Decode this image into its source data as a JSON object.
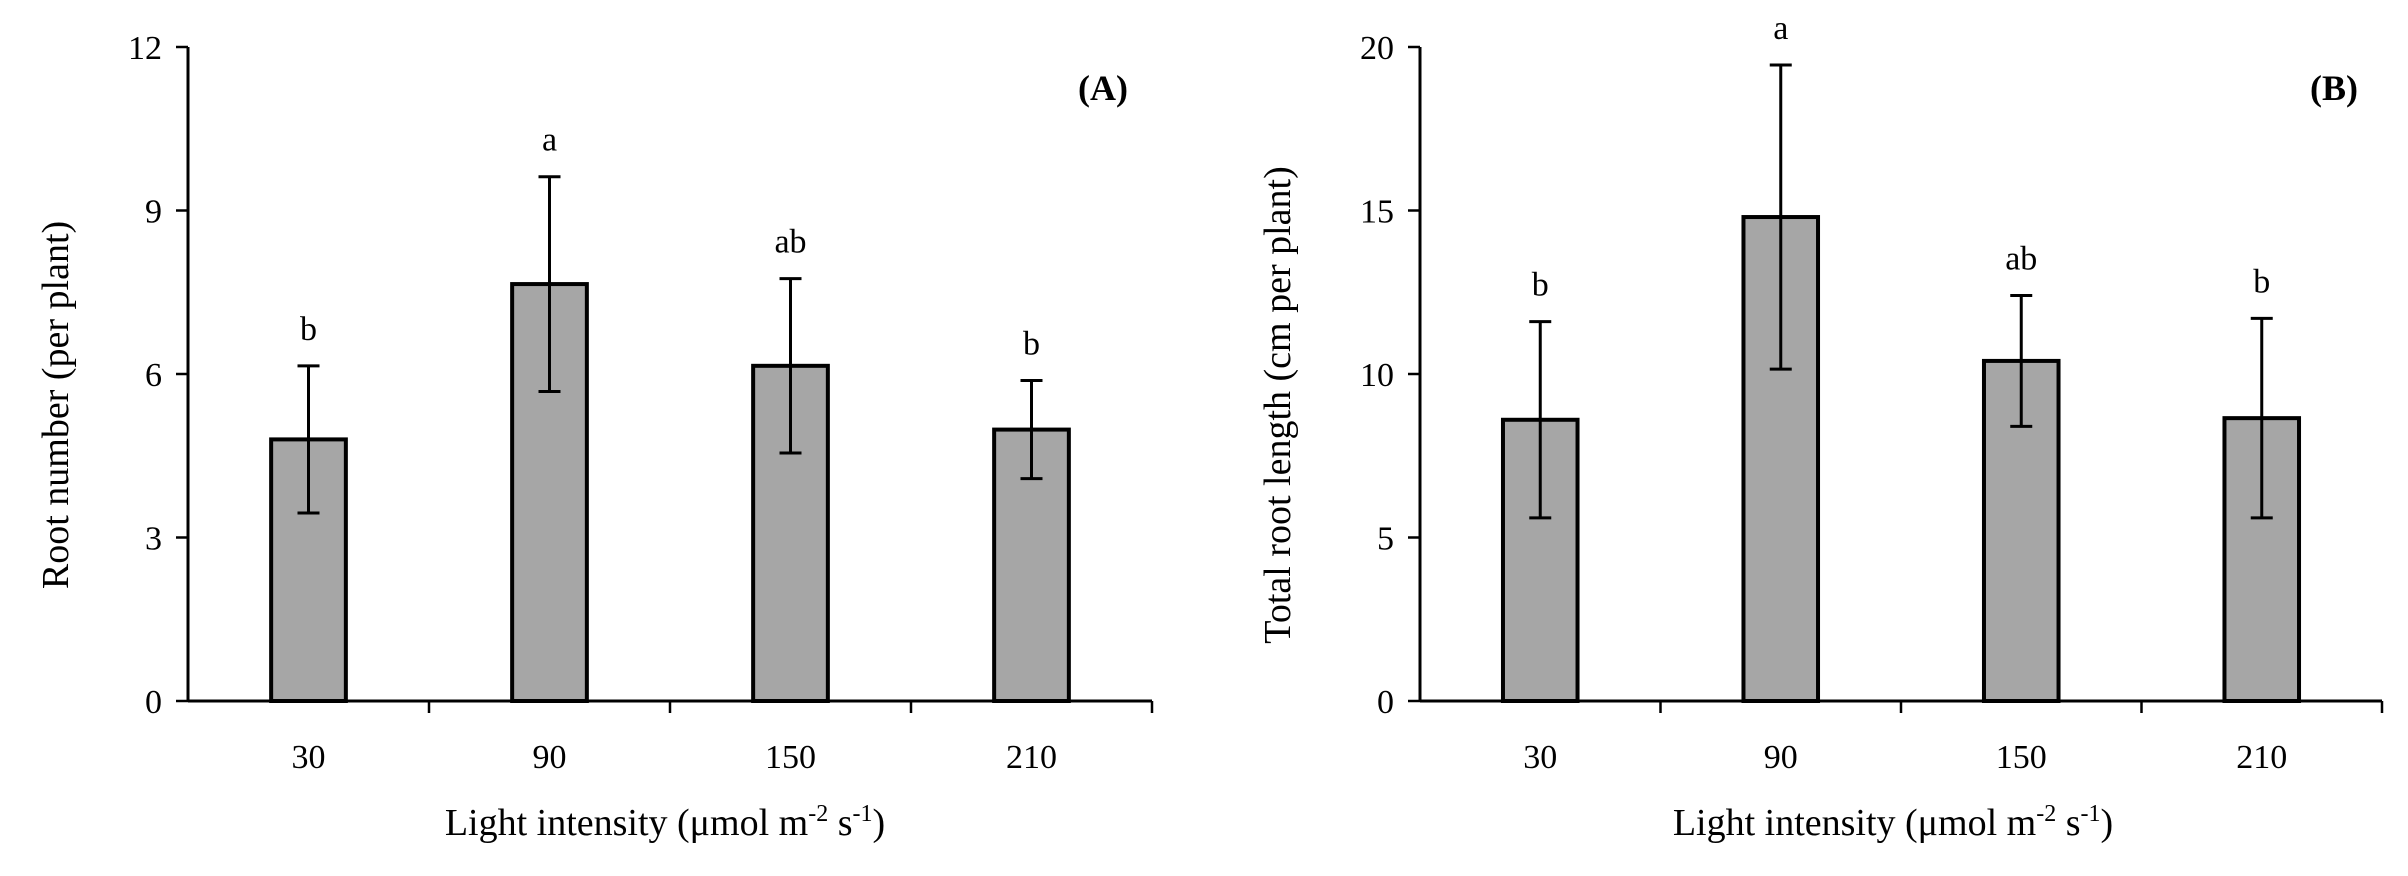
{
  "chart_data": [
    {
      "type": "bar",
      "panel_label": "(A)",
      "categories": [
        "30",
        "90",
        "150",
        "210"
      ],
      "values": [
        4.8,
        7.65,
        6.15,
        4.98
      ],
      "errors": [
        1.35,
        1.97,
        1.6,
        0.9
      ],
      "significance": [
        "b",
        "a",
        "ab",
        "b"
      ],
      "ylabel": "Root number (per plant)",
      "xlabel": "Light intensity (μmol m",
      "xlabel_exp1": "-2",
      "xlabel_mid": " s",
      "xlabel_exp2": "-1",
      "xlabel_end": ")",
      "ylim": [
        0,
        12
      ],
      "yticks": [
        "0",
        "3",
        "6",
        "9",
        "12"
      ],
      "yticks_values": [
        0,
        3,
        6,
        9,
        12
      ],
      "bar_color": "#a6a6a6",
      "grid": false
    },
    {
      "type": "bar",
      "panel_label": "(B)",
      "categories": [
        "30",
        "90",
        "150",
        "210"
      ],
      "values": [
        8.6,
        14.8,
        10.4,
        8.65
      ],
      "errors": [
        3.0,
        4.65,
        2.0,
        3.05
      ],
      "significance": [
        "b",
        "a",
        "ab",
        "b"
      ],
      "ylabel": "Total root length (cm per plant)",
      "xlabel": "Light intensity (μmol m",
      "xlabel_exp1": "-2",
      "xlabel_mid": " s",
      "xlabel_exp2": "-1",
      "xlabel_end": ")",
      "ylim": [
        0,
        20
      ],
      "yticks": [
        "0",
        "5",
        "10",
        "15",
        "20"
      ],
      "yticks_values": [
        0,
        5,
        10,
        15,
        20
      ],
      "bar_color": "#a6a6a6",
      "grid": false
    }
  ]
}
